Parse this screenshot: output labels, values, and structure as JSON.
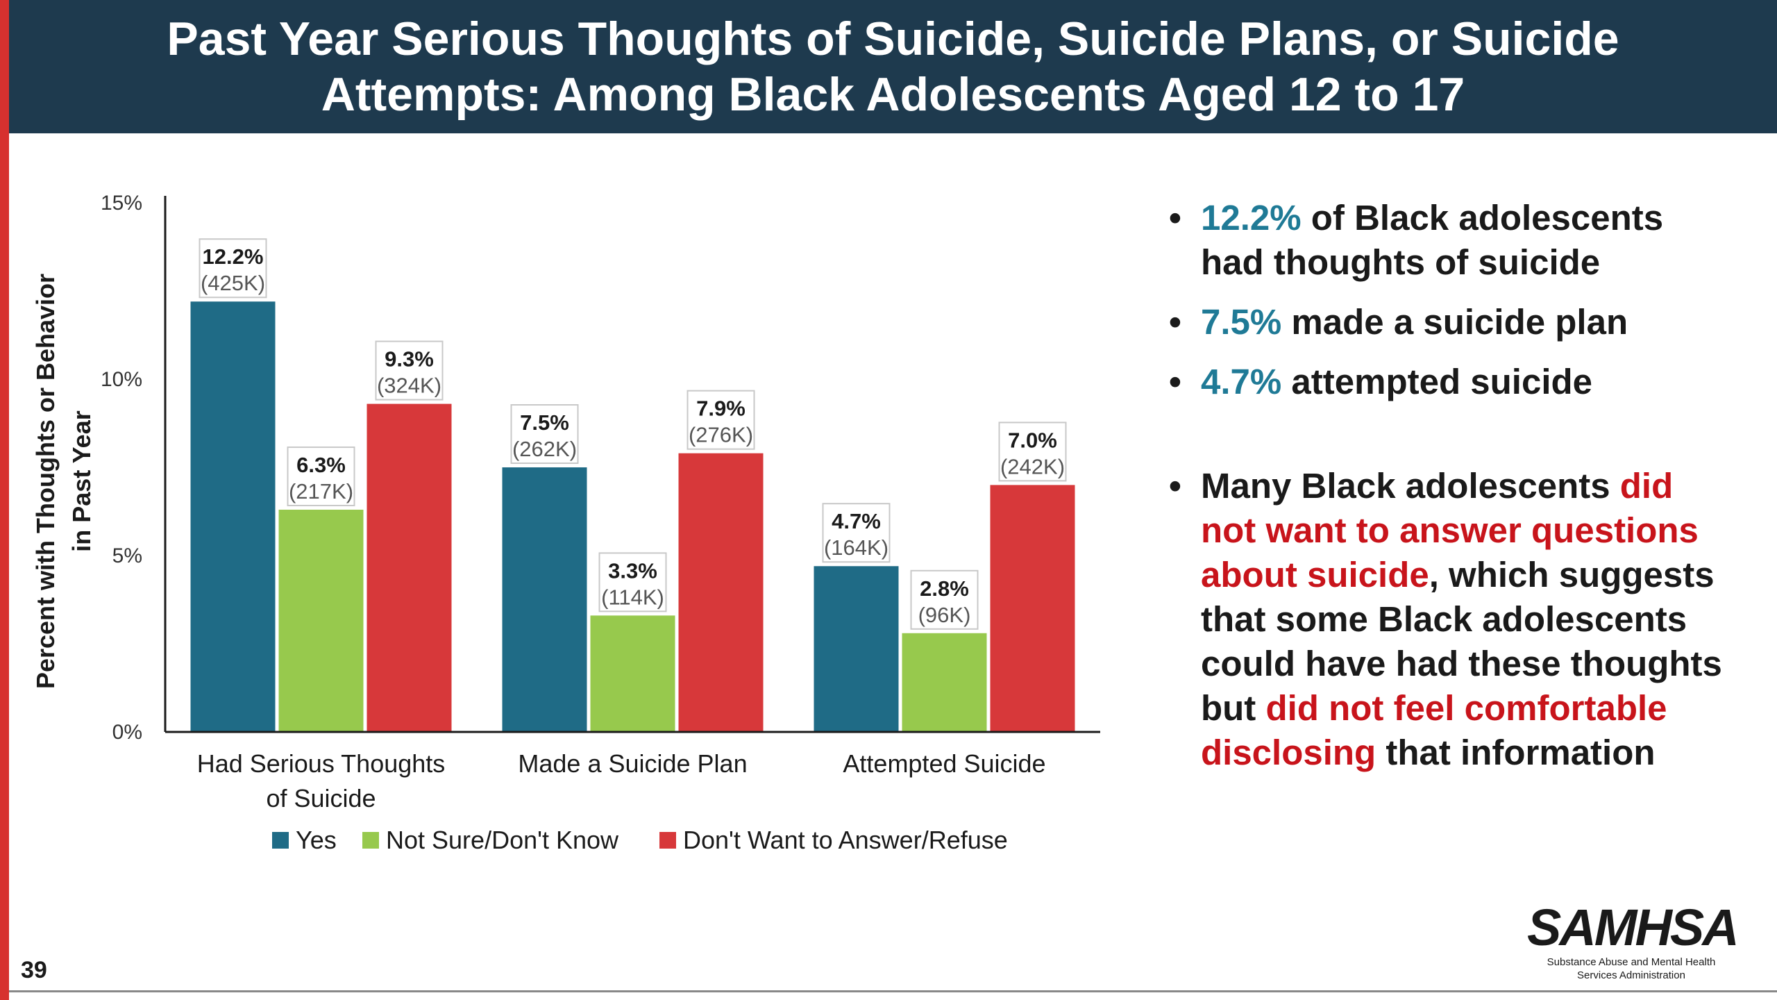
{
  "title": "Past Year Serious Thoughts of Suicide, Suicide Plans, or Suicide Attempts: Among Black Adolescents Aged 12 to 17",
  "colors": {
    "title_bar": "#1e3a4e",
    "accent": "#d7312f",
    "highlight_teal": "#1f7a96",
    "highlight_red": "#c8141b"
  },
  "chart_data": {
    "type": "bar",
    "ylabel": "Percent with Thoughts or Behavior in Past Year",
    "ylim": [
      0,
      15
    ],
    "yticks": [
      "0%",
      "5%",
      "10%",
      "15%"
    ],
    "categories": [
      "Had Serious Thoughts of Suicide",
      "Made a Suicide Plan",
      "Attempted Suicide"
    ],
    "series": [
      {
        "name": "Yes",
        "color": "#1f6b86",
        "values": [
          12.2,
          7.5,
          4.7
        ],
        "labels": [
          "12.2%",
          "7.5%",
          "4.7%"
        ],
        "counts": [
          "(425K)",
          "(262K)",
          "(164K)"
        ]
      },
      {
        "name": "Not Sure/Don't Know",
        "color": "#97c94d",
        "values": [
          6.3,
          3.3,
          2.8
        ],
        "labels": [
          "6.3%",
          "3.3%",
          "2.8%"
        ],
        "counts": [
          "(217K)",
          "(114K)",
          "(96K)"
        ]
      },
      {
        "name": "Don't Want to Answer/Refuse",
        "color": "#d7383a",
        "values": [
          9.3,
          7.9,
          7.0
        ],
        "labels": [
          "9.3%",
          "7.9%",
          "7.0%"
        ],
        "counts": [
          "(324K)",
          "(276K)",
          "(242K)"
        ]
      }
    ],
    "legend_position": "bottom"
  },
  "bullets": {
    "b1": {
      "highlight": "12.2%",
      "text": " of Black adolescents had thoughts of suicide"
    },
    "b2": {
      "highlight": "7.5%",
      "text": " made a suicide plan"
    },
    "b3": {
      "highlight": "4.7%",
      "text": " attempted suicide"
    },
    "b4": {
      "p1": "Many Black adolescents ",
      "h1": "did not want to answer questions about suicide",
      "p2": ", which suggests that some Black adolescents could have had these thoughts but ",
      "h2": "did not feel comfortable disclosing",
      "p3": " that information"
    }
  },
  "slide_number": "39",
  "logo": {
    "word": "SAMHSA",
    "line1": "Substance Abuse and Mental Health",
    "line2": "Services Administration"
  }
}
